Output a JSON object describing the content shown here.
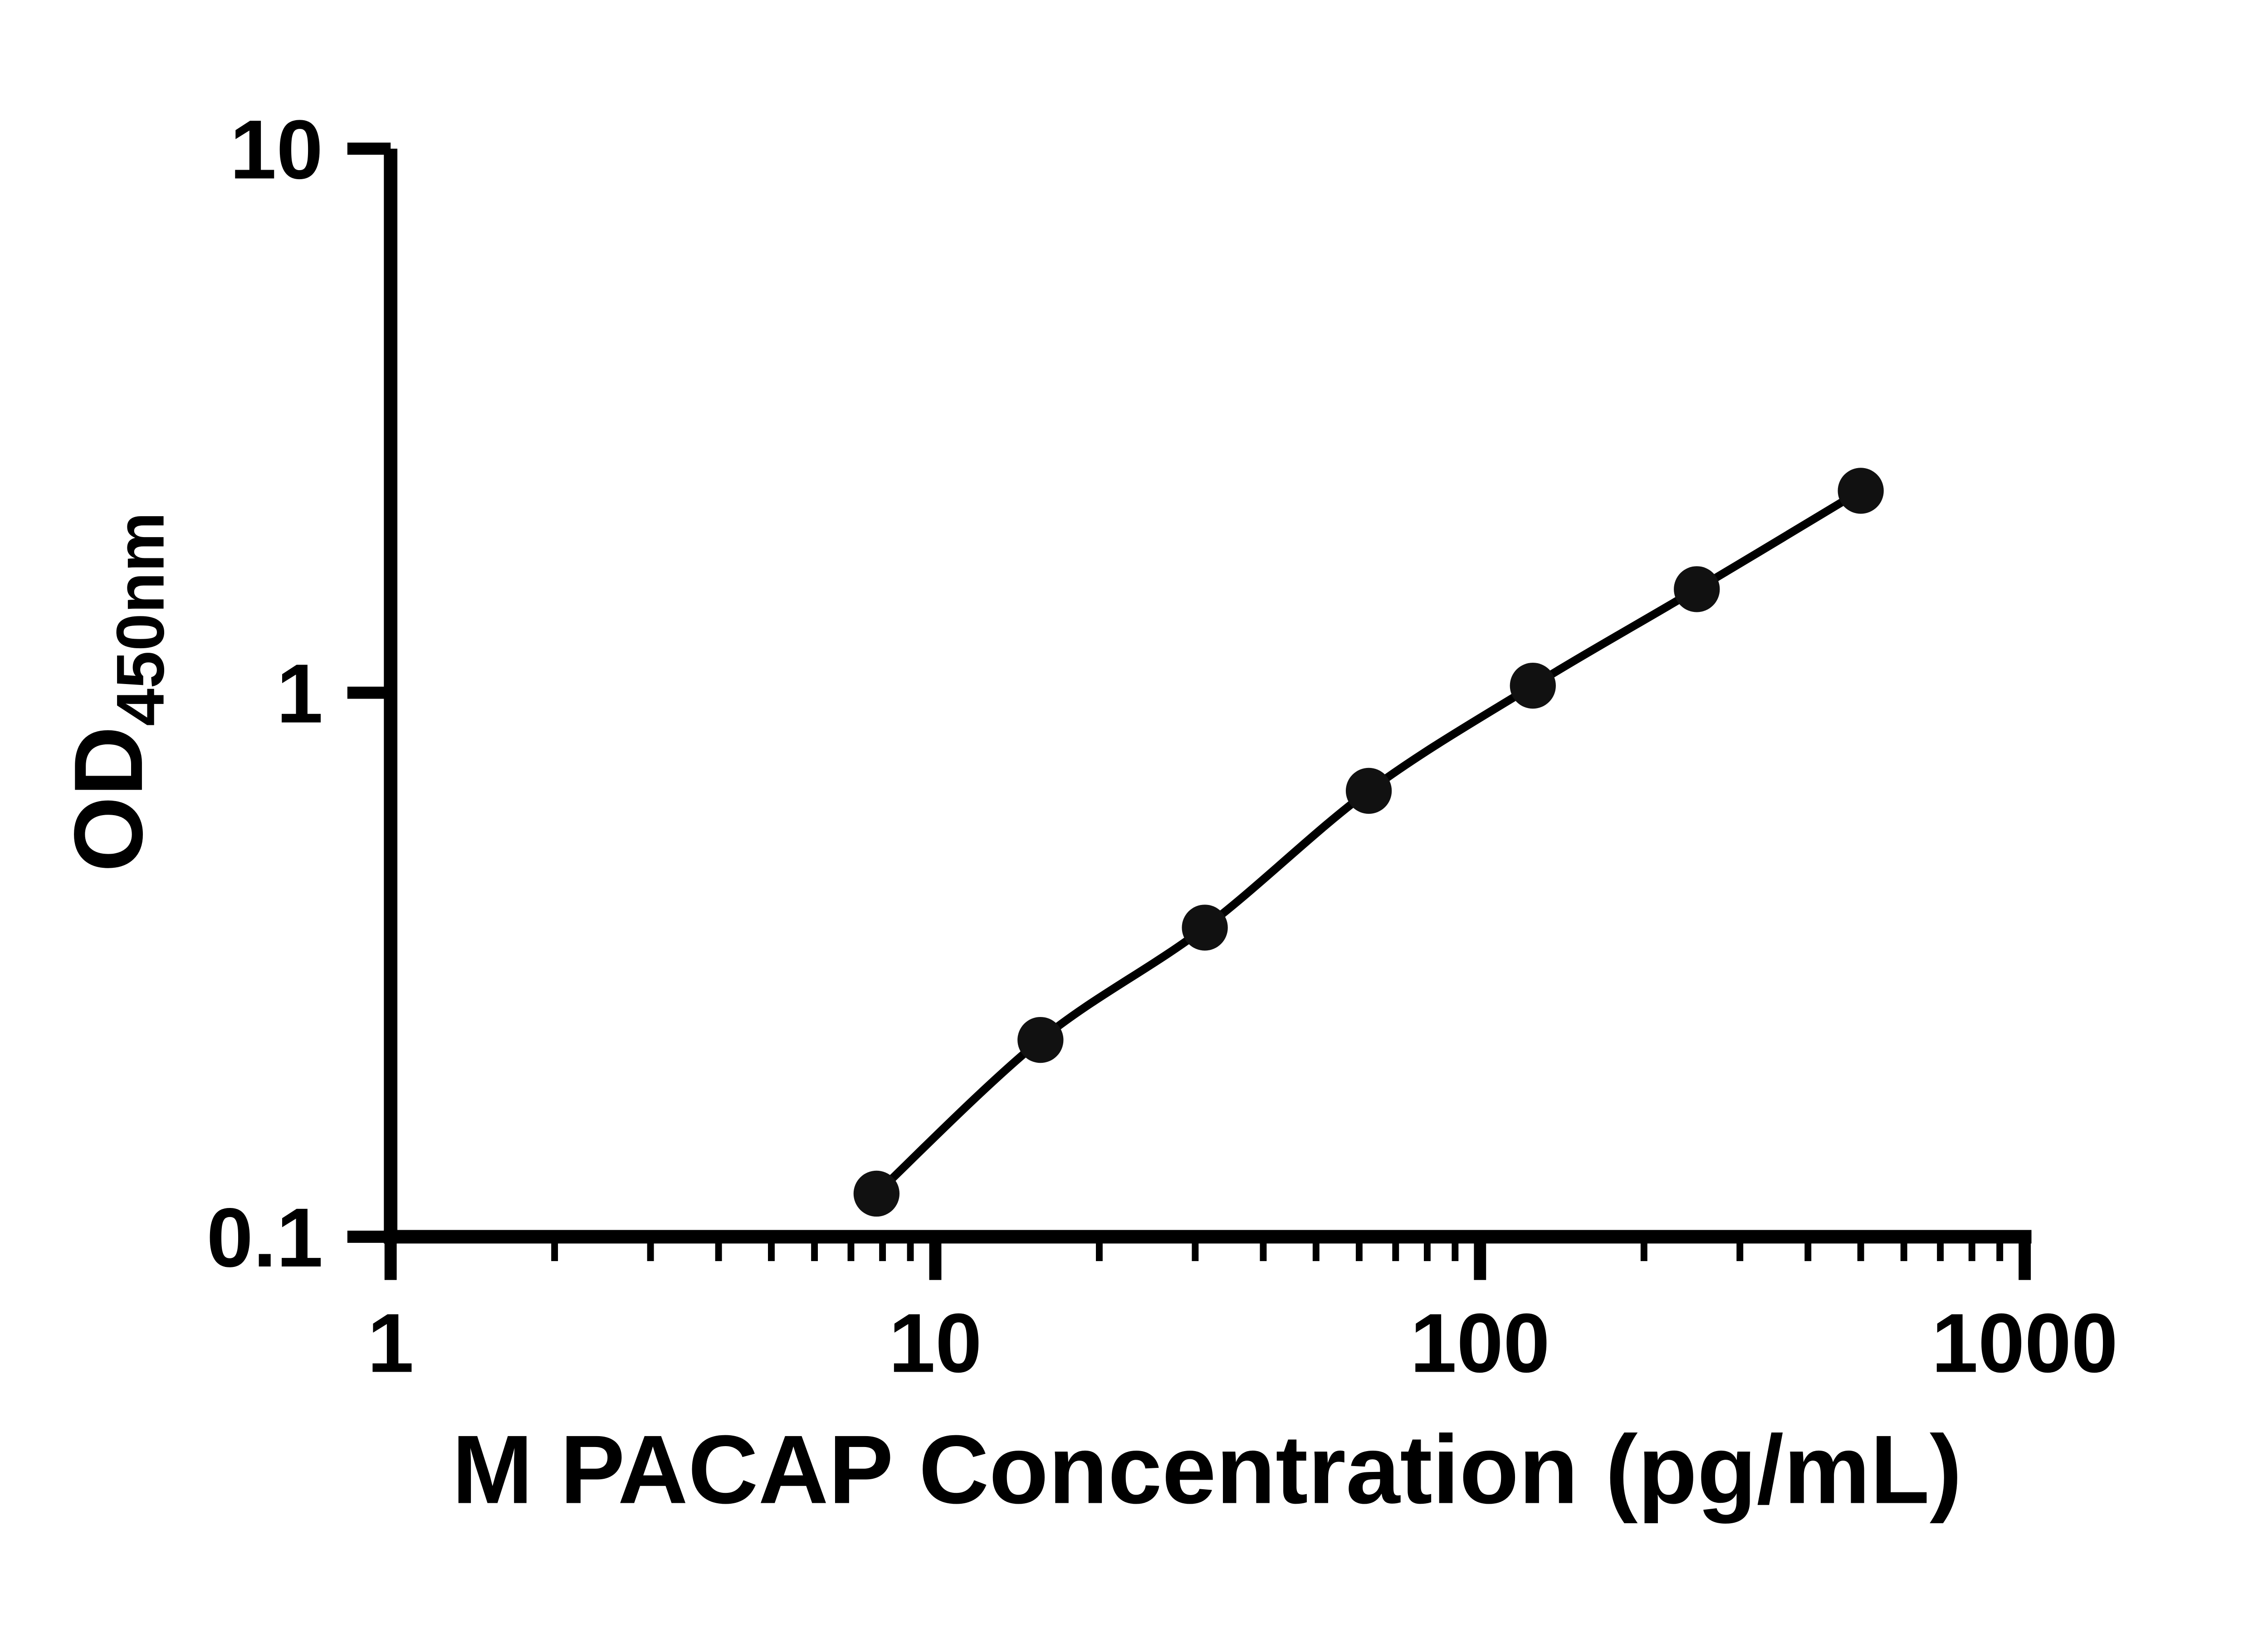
{
  "chart_data": {
    "type": "line",
    "title": "",
    "xlabel": "M PACAP Concentration (pg/mL)",
    "ylabel_main": "OD",
    "ylabel_sub": "450nm",
    "x": [
      7.8,
      15.6,
      31.25,
      62.5,
      125,
      250,
      500
    ],
    "y": [
      0.12,
      0.23,
      0.37,
      0.66,
      1.03,
      1.55,
      2.35
    ],
    "xlim": [
      1,
      1000
    ],
    "ylim": [
      0.1,
      10
    ],
    "xscale": "log",
    "yscale": "log",
    "x_tick_values": [
      1,
      10,
      100,
      1000
    ],
    "x_tick_labels": [
      "1",
      "10",
      "100",
      "1000"
    ],
    "y_tick_values": [
      0.1,
      1,
      10
    ],
    "y_tick_labels": [
      "0.1",
      "1",
      "10"
    ],
    "grid": false,
    "legend": "none",
    "line_color": "#000000",
    "marker_color": "#111111",
    "axis_color": "#000000"
  }
}
